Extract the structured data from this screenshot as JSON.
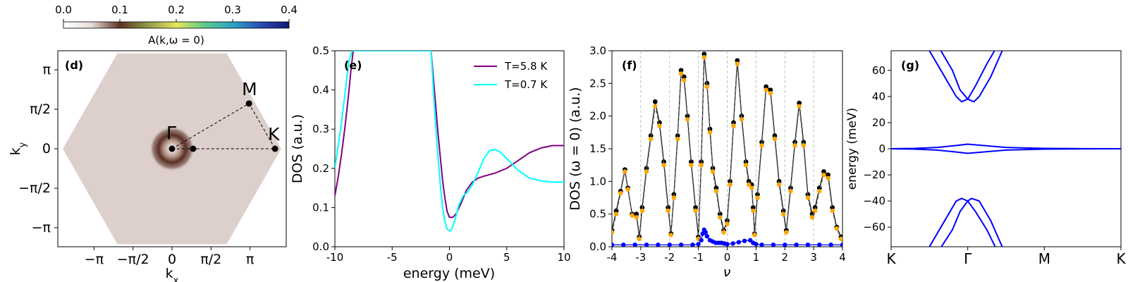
{
  "chart_data": [
    {
      "panel": "colorbar",
      "type": "colorbar",
      "label": "A(k,ω = 0)",
      "range": [
        0.0,
        0.4
      ],
      "ticks": [
        "0.0",
        "0.1",
        "0.2",
        "0.3",
        "0.4"
      ],
      "tick_values": [
        0.0,
        0.1,
        0.2,
        0.3,
        0.4
      ],
      "stops": [
        "#ffffff",
        "#e8dcda",
        "#5c3022",
        "#8f9a4a",
        "#e8e85a",
        "#5fc98a",
        "#29a6c4",
        "#2c49b8",
        "#101870"
      ]
    },
    {
      "panel": "d",
      "type": "heatmap",
      "panel_label": "(d)",
      "xlabel": "k_x",
      "ylabel": "k_y",
      "xticks": [
        "−π",
        "−π/2",
        "0",
        "π/2",
        "π"
      ],
      "xtick_values": [
        -3.1416,
        -1.5708,
        0,
        1.5708,
        3.1416
      ],
      "yticks": [
        "π",
        "π/2",
        "0",
        "−π/2",
        "−π"
      ],
      "ytick_values": [
        3.1416,
        1.5708,
        0,
        -1.5708,
        -3.1416
      ],
      "xlim": [
        -4.6,
        4.6
      ],
      "ylim": [
        -3.9,
        3.9
      ],
      "hexagon_vertices": [
        [
          -4.4,
          0
        ],
        [
          -2.2,
          3.8
        ],
        [
          2.2,
          3.8
        ],
        [
          4.4,
          0
        ],
        [
          2.2,
          -3.8
        ],
        [
          -2.2,
          -3.8
        ]
      ],
      "background_value": 0.02,
      "points": [
        {
          "label": "Γ",
          "x": 0,
          "y": 0
        },
        {
          "label": "",
          "x": 0.85,
          "y": 0
        },
        {
          "label": "M",
          "x": 3.1,
          "y": 1.8
        },
        {
          "label": "K",
          "x": 4.15,
          "y": 0
        }
      ],
      "path": [
        "Γ",
        "M",
        "K",
        "Γ"
      ]
    },
    {
      "panel": "e",
      "type": "line",
      "panel_label": "(e)",
      "xlabel": "energy (meV)",
      "ylabel": "DOS (a.u.)",
      "xlim": [
        -10,
        10
      ],
      "ylim": [
        0,
        0.5
      ],
      "xticks": [
        "-10",
        "-5",
        "0",
        "5",
        "10"
      ],
      "xtick_values": [
        -10,
        -5,
        0,
        5,
        10
      ],
      "yticks": [
        "0.0",
        "0.1",
        "0.2",
        "0.3",
        "0.4",
        "0.5"
      ],
      "ytick_values": [
        0,
        0.1,
        0.2,
        0.3,
        0.4,
        0.5
      ],
      "legend_position": "top-right",
      "series": [
        {
          "name": "T=5.8 K",
          "color": "#800080",
          "x": [
            -10,
            -9.7,
            -9.4,
            -9.1,
            -8.8,
            -8.6,
            -8.4,
            -1.6,
            -1.4,
            -1.2,
            -1.0,
            -0.8,
            -0.6,
            -0.4,
            -0.2,
            0,
            0.3,
            0.6,
            1,
            1.5,
            2,
            2.5,
            3,
            4,
            5,
            6,
            7,
            8,
            9,
            10
          ],
          "y": [
            0.13,
            0.18,
            0.24,
            0.31,
            0.39,
            0.45,
            0.5,
            0.5,
            0.43,
            0.36,
            0.29,
            0.23,
            0.17,
            0.125,
            0.09,
            0.075,
            0.075,
            0.085,
            0.11,
            0.145,
            0.165,
            0.175,
            0.18,
            0.188,
            0.2,
            0.22,
            0.24,
            0.252,
            0.258,
            0.258
          ]
        },
        {
          "name": "T=0.7 K",
          "color": "#00ffff",
          "x": [
            -10,
            -9.8,
            -9.5,
            -9.2,
            -9.0,
            -8.8,
            -8.5,
            -1.6,
            -1.4,
            -1.2,
            -1.0,
            -0.8,
            -0.6,
            -0.4,
            -0.2,
            0,
            0.2,
            0.5,
            0.8,
            1.2,
            1.6,
            2.0,
            2.5,
            3.0,
            3.5,
            4.0,
            4.5,
            5,
            6,
            7,
            8,
            9,
            10
          ],
          "y": [
            0.2,
            0.24,
            0.3,
            0.37,
            0.42,
            0.47,
            0.5,
            0.5,
            0.4,
            0.31,
            0.23,
            0.16,
            0.1,
            0.065,
            0.045,
            0.04,
            0.045,
            0.07,
            0.105,
            0.13,
            0.14,
            0.158,
            0.19,
            0.225,
            0.245,
            0.248,
            0.24,
            0.225,
            0.195,
            0.175,
            0.168,
            0.165,
            0.165
          ]
        }
      ]
    },
    {
      "panel": "f",
      "type": "line",
      "panel_label": "(f)",
      "xlabel": "ν",
      "ylabel": "DOS (ω = 0) (a.u.)",
      "xlim": [
        -4,
        4
      ],
      "ylim": [
        0,
        3.0
      ],
      "xticks": [
        "-4",
        "-3",
        "-2",
        "-1",
        "0",
        "1",
        "2",
        "3",
        "4"
      ],
      "xtick_values": [
        -4,
        -3,
        -2,
        -1,
        0,
        1,
        2,
        3,
        4
      ],
      "yticks": [
        "0.0",
        "0.5",
        "1.0",
        "1.5",
        "2.0",
        "2.5",
        "3.0"
      ],
      "ytick_values": [
        0,
        0.5,
        1.0,
        1.5,
        2.0,
        2.5,
        3.0
      ],
      "vlines": [
        -3,
        -2,
        -1,
        0,
        1,
        2,
        3
      ],
      "series": [
        {
          "name": "",
          "color": "#000000",
          "style": "dots",
          "x": [
            -4,
            -3.85,
            -3.7,
            -3.55,
            -3.45,
            -3.3,
            -3.15,
            -3.05,
            -2.95,
            -2.8,
            -2.65,
            -2.5,
            -2.35,
            -2.2,
            -2.05,
            -1.95,
            -1.85,
            -1.72,
            -1.6,
            -1.5,
            -1.38,
            -1.25,
            -1.1,
            -1.0,
            -0.9,
            -0.8,
            -0.7,
            -0.6,
            -0.5,
            -0.38,
            -0.25,
            -0.12,
            0,
            0.1,
            0.22,
            0.35,
            0.5,
            0.65,
            0.75,
            0.85,
            0.9,
            0.95,
            1.05,
            1.2,
            1.35,
            1.5,
            1.65,
            1.8,
            1.95,
            2.05,
            2.2,
            2.35,
            2.5,
            2.65,
            2.8,
            2.95,
            3.05,
            3.2,
            3.35,
            3.5,
            3.65,
            3.8,
            3.95
          ],
          "y": [
            0.25,
            0.55,
            0.85,
            1.18,
            0.9,
            0.5,
            0.5,
            0.15,
            0.6,
            1.2,
            1.7,
            2.22,
            1.9,
            1.3,
            0.6,
            0.2,
            0.8,
            1.7,
            2.7,
            2.6,
            2.0,
            1.3,
            0.6,
            0.15,
            1.3,
            2.95,
            2.5,
            1.8,
            1.2,
            0.9,
            0.5,
            0.25,
            0.4,
            1.0,
            1.9,
            2.85,
            2.0,
            1.3,
            1.0,
            0.95,
            0.6,
            0.2,
            0.8,
            1.6,
            2.45,
            2.4,
            1.7,
            1.0,
            0.55,
            0.25,
            0.9,
            1.6,
            2.2,
            1.6,
            0.8,
            0.5,
            0.6,
            0.9,
            1.15,
            1.1,
            0.6,
            0.3,
            0.15
          ]
        },
        {
          "name": "",
          "color": "#ffa500",
          "style": "dots-dashed",
          "x": [
            -4,
            -3.85,
            -3.7,
            -3.55,
            -3.45,
            -3.3,
            -3.15,
            -3.05,
            -2.95,
            -2.8,
            -2.65,
            -2.5,
            -2.35,
            -2.2,
            -2.05,
            -1.95,
            -1.85,
            -1.72,
            -1.6,
            -1.5,
            -1.38,
            -1.25,
            -1.1,
            -1.0,
            -0.9,
            -0.8,
            -0.7,
            -0.6,
            -0.5,
            -0.38,
            -0.25,
            -0.12,
            0,
            0.1,
            0.22,
            0.35,
            0.5,
            0.65,
            0.75,
            0.85,
            0.9,
            0.95,
            1.05,
            1.2,
            1.35,
            1.5,
            1.65,
            1.8,
            1.95,
            2.05,
            2.2,
            2.35,
            2.5,
            2.65,
            2.8,
            2.95,
            3.05,
            3.2,
            3.35,
            3.5,
            3.65,
            3.8,
            3.95
          ],
          "y": [
            0.22,
            0.5,
            0.82,
            1.15,
            0.88,
            0.48,
            0.45,
            0.12,
            0.55,
            1.15,
            1.65,
            2.15,
            1.85,
            1.25,
            0.55,
            0.18,
            0.75,
            1.65,
            2.65,
            2.55,
            1.95,
            1.25,
            0.55,
            0.12,
            1.25,
            2.9,
            2.45,
            1.75,
            1.15,
            0.85,
            0.45,
            0.22,
            0.35,
            0.95,
            1.85,
            2.8,
            1.95,
            1.25,
            0.95,
            0.9,
            0.55,
            0.18,
            0.75,
            1.55,
            2.4,
            2.35,
            1.65,
            0.95,
            0.5,
            0.22,
            0.85,
            1.55,
            2.15,
            1.55,
            0.75,
            0.45,
            0.55,
            0.85,
            1.1,
            1.05,
            0.55,
            0.28,
            0.12
          ]
        },
        {
          "name": "",
          "color": "#0000ff",
          "style": "dots",
          "x": [
            -4,
            -3.6,
            -3.2,
            -2.8,
            -2.4,
            -2.0,
            -1.6,
            -1.2,
            -1.0,
            -0.9,
            -0.85,
            -0.8,
            -0.75,
            -0.7,
            -0.6,
            -0.5,
            -0.4,
            -0.3,
            -0.2,
            -0.1,
            0,
            0.2,
            0.4,
            0.6,
            0.8,
            0.9,
            1.0,
            1.2,
            1.6,
            2.0,
            2.4,
            2.8,
            3.2,
            3.6,
            4.0
          ],
          "y": [
            0.03,
            0.03,
            0.03,
            0.03,
            0.03,
            0.03,
            0.03,
            0.03,
            0.04,
            0.1,
            0.2,
            0.26,
            0.22,
            0.16,
            0.1,
            0.08,
            0.06,
            0.06,
            0.06,
            0.05,
            0.04,
            0.05,
            0.07,
            0.09,
            0.1,
            0.06,
            0.04,
            0.03,
            0.03,
            0.03,
            0.03,
            0.03,
            0.03,
            0.03,
            0.03
          ]
        }
      ]
    },
    {
      "panel": "g",
      "type": "line",
      "panel_label": "(g)",
      "xlabel": "",
      "ylabel": "energy (meV)",
      "xlim": [
        0,
        3
      ],
      "ylim": [
        -75,
        75
      ],
      "xticks": [
        "K",
        "Γ",
        "M",
        "K"
      ],
      "xtick_values": [
        0,
        1,
        2,
        3
      ],
      "yticks": [
        "60",
        "40",
        "20",
        "0",
        "−20",
        "−40",
        "−60"
      ],
      "ytick_values": [
        60,
        40,
        20,
        0,
        -20,
        -40,
        -60
      ],
      "series": [
        {
          "name": "",
          "color": "#0000ff",
          "x": [
            0.5,
            0.7,
            0.85,
            0.92,
            1.0,
            1.1,
            1.25,
            1.4
          ],
          "y": [
            75,
            55,
            40,
            36,
            38,
            48,
            65,
            80
          ]
        },
        {
          "name": "",
          "color": "#0000ff",
          "x": [
            0.6,
            0.8,
            0.9,
            1.0,
            1.08,
            1.15,
            1.3,
            1.45
          ],
          "y": [
            80,
            60,
            45,
            38,
            36,
            40,
            55,
            75
          ]
        },
        {
          "name": "",
          "color": "#0000ff",
          "x": [
            0,
            0.3,
            0.6,
            0.85,
            1.0,
            1.2,
            1.5,
            2.0,
            2.5,
            3.0
          ],
          "y": [
            0,
            0.3,
            1.0,
            2.5,
            3.5,
            2.5,
            1.0,
            0.3,
            0.1,
            0
          ]
        },
        {
          "name": "",
          "color": "#0000ff",
          "x": [
            0,
            0.3,
            0.6,
            0.85,
            1.0,
            1.2,
            1.5,
            2.0,
            2.5,
            3.0
          ],
          "y": [
            0,
            -0.3,
            -1.0,
            -2.5,
            -3.5,
            -2.5,
            -1.0,
            -0.3,
            -0.1,
            0
          ]
        },
        {
          "name": "",
          "color": "#0000ff",
          "x": [
            0.5,
            0.7,
            0.85,
            0.92,
            1.0,
            1.1,
            1.25,
            1.4
          ],
          "y": [
            -75,
            -55,
            -40,
            -38,
            -40,
            -48,
            -62,
            -80
          ]
        },
        {
          "name": "",
          "color": "#0000ff",
          "x": [
            0.6,
            0.8,
            0.9,
            1.0,
            1.05,
            1.15,
            1.3,
            1.45
          ],
          "y": [
            -80,
            -62,
            -48,
            -40,
            -38,
            -40,
            -55,
            -75
          ]
        }
      ]
    }
  ]
}
